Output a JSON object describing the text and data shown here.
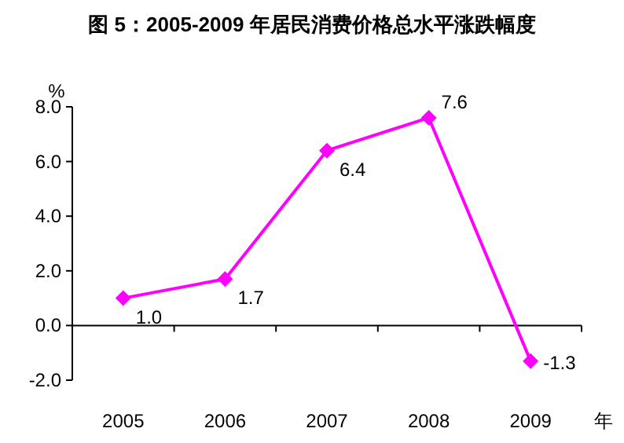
{
  "chart_data": {
    "type": "line",
    "title": "图 5：2005-2009 年居民消费价格总水平涨跌幅度",
    "ylabel": "%",
    "xlabel": "年",
    "categories": [
      "2005",
      "2006",
      "2007",
      "2008",
      "2009"
    ],
    "series": [
      {
        "color": "#ff00ff",
        "values": [
          1.0,
          1.7,
          6.4,
          7.6,
          -1.3
        ],
        "value_labels": [
          "1.0",
          "1.7",
          "6.4",
          "7.6",
          "-1.3"
        ]
      }
    ],
    "ylim": [
      -2,
      8
    ],
    "yticks": [
      {
        "value": -2,
        "label": "-2.0"
      },
      {
        "value": 0,
        "label": "0.0"
      },
      {
        "value": 2,
        "label": "2.0"
      },
      {
        "value": 4,
        "label": "4.0"
      },
      {
        "value": 6,
        "label": "6.0"
      },
      {
        "value": 8,
        "label": "8.0"
      }
    ],
    "marker": "diamond",
    "line_style": "solid"
  }
}
